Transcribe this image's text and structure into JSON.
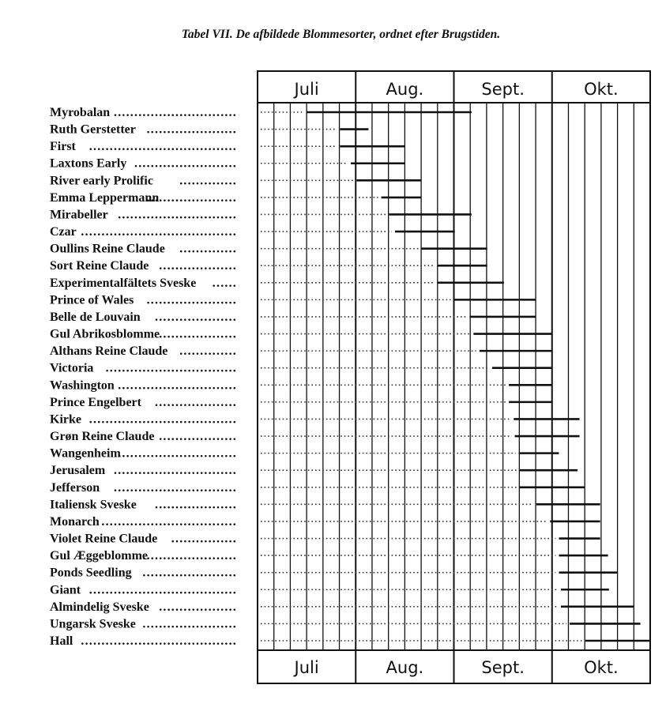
{
  "title": "Tabel VII. De afbildede Blommesorter, ordnet efter Brugstiden.",
  "chart_data": {
    "type": "gantt",
    "title": "Tabel VII. De afbildede Blommesorter, ordnet efter Brugstiden.",
    "x_unit": "month (7 = start of Juli, 11 = end of Okt.)",
    "xlim": [
      7,
      11
    ],
    "months": [
      "Juli",
      "Aug.",
      "Sept.",
      "Okt."
    ],
    "subdivisions_per_month": 6,
    "grid": true,
    "bar_color": "#111111",
    "series": [
      {
        "name": "Myrobalan",
        "start": 7.5,
        "end": 9.18
      },
      {
        "name": "Ruth Gerstetter",
        "start": 7.84,
        "end": 8.13
      },
      {
        "name": "First",
        "start": 7.84,
        "end": 8.5
      },
      {
        "name": "Laxtons Early",
        "start": 7.95,
        "end": 8.5
      },
      {
        "name": "River early Prolific",
        "start": 8.01,
        "end": 8.67
      },
      {
        "name": "Emma Leppermann",
        "start": 8.26,
        "end": 8.67
      },
      {
        "name": "Mirabeller",
        "start": 8.34,
        "end": 9.18
      },
      {
        "name": "Czar",
        "start": 8.4,
        "end": 9.01
      },
      {
        "name": "Oullins Reine Claude",
        "start": 8.67,
        "end": 9.34
      },
      {
        "name": "Sort Reine Claude",
        "start": 8.83,
        "end": 9.34
      },
      {
        "name": "Experimentalfältets Sveske",
        "start": 8.83,
        "end": 9.51
      },
      {
        "name": "Prince of Wales",
        "start": 9.0,
        "end": 9.83
      },
      {
        "name": "Belle de Louvain",
        "start": 9.16,
        "end": 9.83
      },
      {
        "name": "Gul Abrikosblomme",
        "start": 9.2,
        "end": 10.0
      },
      {
        "name": "Althans Reine Claude",
        "start": 9.26,
        "end": 10.0
      },
      {
        "name": "Victoria",
        "start": 9.39,
        "end": 10.0
      },
      {
        "name": "Washington",
        "start": 9.56,
        "end": 10.0
      },
      {
        "name": "Prince Engelbert",
        "start": 9.56,
        "end": 10.0
      },
      {
        "name": "Kirke",
        "start": 9.61,
        "end": 10.28
      },
      {
        "name": "Grøn Reine Claude",
        "start": 9.62,
        "end": 10.28
      },
      {
        "name": "Wangenheim",
        "start": 9.66,
        "end": 10.07
      },
      {
        "name": "Jerusalem",
        "start": 9.67,
        "end": 10.26
      },
      {
        "name": "Jefferson",
        "start": 9.67,
        "end": 10.33
      },
      {
        "name": "Italiensk Sveske",
        "start": 9.84,
        "end": 10.49
      },
      {
        "name": "Monarch",
        "start": 9.98,
        "end": 10.49
      },
      {
        "name": "Violet Reine Claude",
        "start": 10.07,
        "end": 10.49
      },
      {
        "name": "Gul Æggeblomme",
        "start": 10.07,
        "end": 10.57
      },
      {
        "name": "Ponds Seedling",
        "start": 10.07,
        "end": 10.67
      },
      {
        "name": "Giant",
        "start": 10.09,
        "end": 10.58
      },
      {
        "name": "Almindelig Sveske",
        "start": 10.09,
        "end": 10.83
      },
      {
        "name": "Ungarsk Sveske",
        "start": 10.18,
        "end": 10.9
      },
      {
        "name": "Hall",
        "start": 10.34,
        "end": 11.0
      }
    ]
  }
}
